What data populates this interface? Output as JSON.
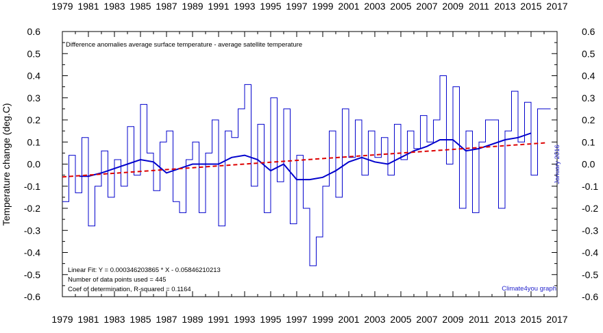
{
  "chart_data": {
    "type": "line",
    "title": "Difference anomalies average surface temperature - average satellite temperature",
    "ylabel": "Temperature change (deg.C)",
    "xlim": [
      1979,
      2017
    ],
    "ylim": [
      -0.6,
      0.6
    ],
    "x_ticks": [
      "1979",
      "1981",
      "1983",
      "1985",
      "1987",
      "1989",
      "1991",
      "1993",
      "1995",
      "1997",
      "1999",
      "2001",
      "2003",
      "2005",
      "2007",
      "2009",
      "2011",
      "2013",
      "2015",
      "2017"
    ],
    "y_ticks": [
      "0.6",
      "0.5",
      "0.4",
      "0.3",
      "0.2",
      "0.1",
      "0.0",
      "-0.1",
      "-0.2",
      "-0.3",
      "-0.4",
      "-0.5",
      "-0.6"
    ],
    "date_label": "January 2016",
    "credit": "Climate4you graph",
    "fit_text": [
      "Linear Fit:   Y = 0.000346203865 * X - 0.05846210213",
      "Number of data points used = 445",
      "Coef of determination, R-squared = 0.1164"
    ],
    "grid": false,
    "colors": {
      "monthly": "#0000cc",
      "running_mean": "#0000cc",
      "trend": "#dd0000",
      "annotation": "#2222cc"
    },
    "series": [
      {
        "style": "step",
        "x": [
          1979.0,
          1979.5,
          1980.0,
          1980.5,
          1981.0,
          1981.5,
          1982.0,
          1982.5,
          1983.0,
          1983.5,
          1984.0,
          1984.5,
          1985.0,
          1985.5,
          1986.0,
          1986.5,
          1987.0,
          1987.5,
          1988.0,
          1988.5,
          1989.0,
          1989.5,
          1990.0,
          1990.5,
          1991.0,
          1991.5,
          1992.0,
          1992.5,
          1993.0,
          1993.5,
          1994.0,
          1994.5,
          1995.0,
          1995.5,
          1996.0,
          1996.5,
          1997.0,
          1997.5,
          1998.0,
          1998.5,
          1999.0,
          1999.5,
          2000.0,
          2000.5,
          2001.0,
          2001.5,
          2002.0,
          2002.5,
          2003.0,
          2003.5,
          2004.0,
          2004.5,
          2005.0,
          2005.5,
          2006.0,
          2006.5,
          2007.0,
          2007.5,
          2008.0,
          2008.5,
          2009.0,
          2009.5,
          2010.0,
          2010.5,
          2011.0,
          2011.5,
          2012.0,
          2012.5,
          2013.0,
          2013.5,
          2014.0,
          2014.5,
          2015.0,
          2015.5,
          2016.0
        ],
        "values": [
          -0.17,
          0.04,
          -0.13,
          0.12,
          -0.28,
          -0.1,
          0.06,
          -0.15,
          0.02,
          -0.1,
          0.17,
          -0.05,
          0.27,
          0.05,
          -0.12,
          0.1,
          0.15,
          -0.17,
          -0.22,
          0.02,
          0.1,
          -0.22,
          0.05,
          0.2,
          -0.28,
          0.15,
          0.12,
          0.25,
          0.36,
          -0.1,
          0.18,
          -0.22,
          0.3,
          -0.08,
          0.25,
          -0.27,
          0.04,
          -0.2,
          -0.46,
          -0.33,
          -0.1,
          0.15,
          -0.15,
          0.25,
          0.03,
          0.2,
          -0.05,
          0.15,
          0.03,
          0.12,
          -0.05,
          0.18,
          0.02,
          0.15,
          0.07,
          0.22,
          0.1,
          0.2,
          0.4,
          0.0,
          0.35,
          -0.2,
          0.15,
          -0.22,
          0.1,
          0.2,
          0.2,
          -0.2,
          0.15,
          0.33,
          0.1,
          0.28,
          -0.05,
          0.25,
          0.25
        ]
      },
      {
        "style": "smooth",
        "x": [
          1980.3,
          1981.0,
          1982.0,
          1983.0,
          1984.0,
          1985.0,
          1986.0,
          1987.0,
          1988.0,
          1989.0,
          1990.0,
          1991.0,
          1992.0,
          1993.0,
          1994.0,
          1995.0,
          1996.0,
          1997.0,
          1998.0,
          1999.0,
          2000.0,
          2001.0,
          2002.0,
          2003.0,
          2004.0,
          2005.0,
          2006.0,
          2007.0,
          2008.0,
          2009.0,
          2010.0,
          2011.0,
          2012.0,
          2013.0,
          2014.0,
          2015.0
        ],
        "values": [
          -0.055,
          -0.055,
          -0.04,
          -0.02,
          0.0,
          0.02,
          0.01,
          -0.04,
          -0.02,
          0.0,
          0.0,
          0.0,
          0.03,
          0.04,
          0.02,
          -0.03,
          0.0,
          -0.07,
          -0.07,
          -0.06,
          -0.03,
          0.01,
          0.03,
          0.01,
          0.0,
          0.03,
          0.06,
          0.08,
          0.11,
          0.11,
          0.06,
          0.07,
          0.09,
          0.11,
          0.12,
          0.14
        ]
      },
      {
        "style": "dashed",
        "x": [
          1979.0,
          2016.1
        ],
        "values": [
          -0.058,
          0.096
        ]
      }
    ]
  }
}
